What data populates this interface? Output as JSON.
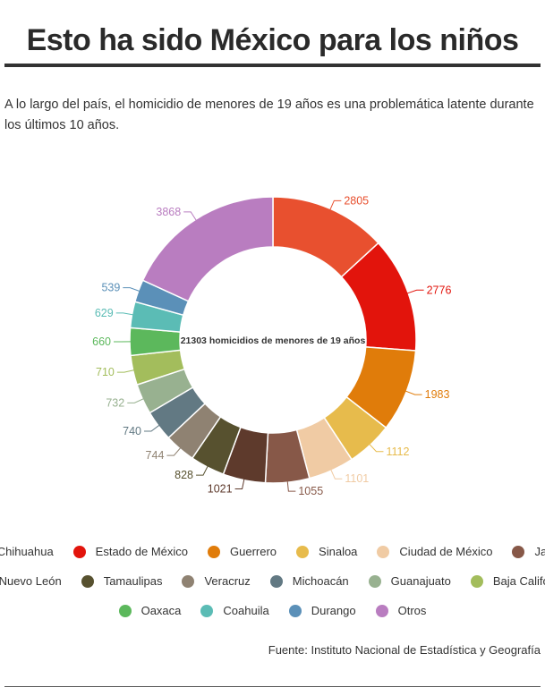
{
  "page": {
    "title": "Esto ha sido México para los niños",
    "subtitle": "A lo largo del país, el homicidio de menores de 19 años es una problemática latente durante los últimos 10 años.",
    "source": "Fuente: Instituto Nacional de Estadística y Geografía"
  },
  "chart_data": {
    "type": "pie",
    "center_label": "21303 homicidios de menores de 19 años",
    "legend_position": "bottom",
    "categories": [
      "Chihuahua",
      "Estado de México",
      "Guerrero",
      "Sinaloa",
      "Ciudad de México",
      "Jalisco",
      "Nuevo León",
      "Tamaulipas",
      "Veracruz",
      "Michoacán",
      "Guanajuato",
      "Baja California",
      "Oaxaca",
      "Coahuila",
      "Durango",
      "Otros"
    ],
    "values": [
      2805,
      2776,
      1983,
      1112,
      1101,
      1055,
      1021,
      828,
      744,
      740,
      732,
      710,
      660,
      629,
      539,
      3868
    ],
    "colors": [
      "#e8502f",
      "#e2140c",
      "#e07c0a",
      "#e7bb4c",
      "#f0cba4",
      "#875848",
      "#5e3a2c",
      "#57512f",
      "#8f8272",
      "#627983",
      "#98b190",
      "#a3bd5c",
      "#5cb85c",
      "#5bbcb5",
      "#5b90b8",
      "#b97dc0"
    ]
  }
}
